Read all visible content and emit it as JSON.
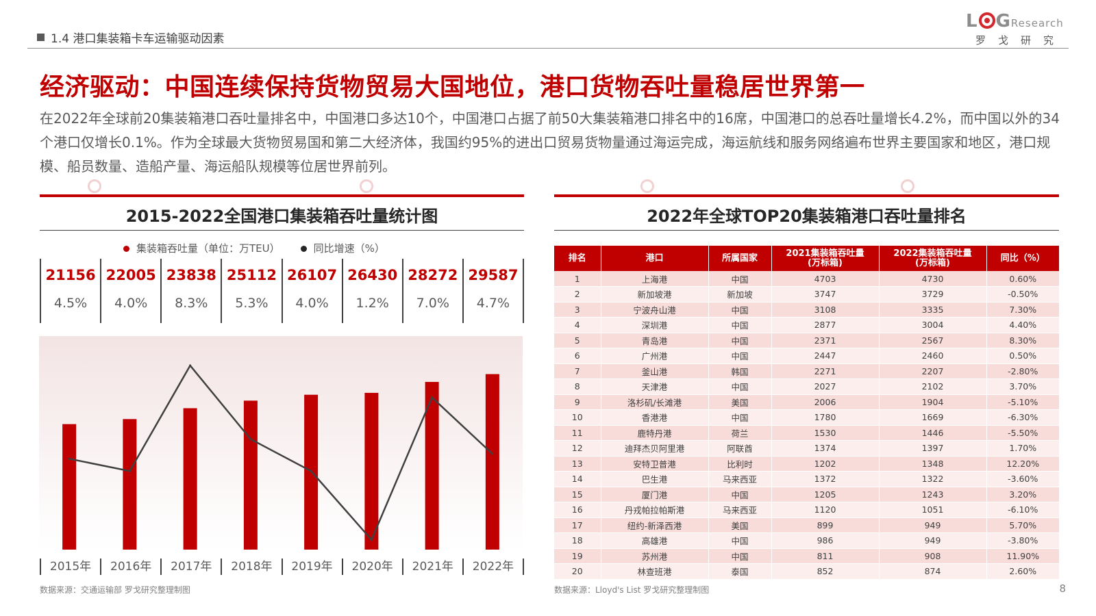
{
  "header": {
    "section": "1.4 港口集装箱卡车运输驱动因素",
    "logo_main": "L",
    "logo_g": "G",
    "logo_research": "Research",
    "logo_cn": "罗戈研究"
  },
  "title": "经济驱动：中国连续保持货物贸易大国地位，港口货物吞吐量稳居世界第一",
  "intro": "在2022年全球前20集装箱港口吞吐量排名中，中国港口多达10个，中国港口占据了前50大集装箱港口排名中的16席，中国港口的总吞吐量增长4.2%，而中国以外的34个港口仅增长0.1%。作为全球最大货物贸易国和第二大经济体，我国约95%的进出口贸易货物量通过海运完成，海运航线和服务网络遍布世界主要国家和地区，港口规模、船员数量、造船产量、海运船队规模等位居世界前列。",
  "left_panel": {
    "title": "2015-2022全国港口集装箱吞吐量统计图",
    "legend": [
      "集装箱吞吐量（单位：万TEU）",
      "同比增速（%）"
    ],
    "source": "数据来源：交通运输部  罗戈研究整理制图"
  },
  "right_panel": {
    "title": "2022年全球TOP20集装箱港口吞吐量排名",
    "source": "数据来源：Lloyd's List  罗戈研究整理制图"
  },
  "page_number": "8",
  "colors": {
    "accent": "#c00000",
    "line": "#404040"
  },
  "chart_data": [
    {
      "type": "bar",
      "categories": [
        "2015年",
        "2016年",
        "2017年",
        "2018年",
        "2019年",
        "2020年",
        "2021年",
        "2022年"
      ],
      "series": [
        {
          "name": "集装箱吞吐量（单位：万TEU）",
          "type": "bar",
          "values": [
            21156,
            22005,
            23838,
            25112,
            26107,
            26430,
            28272,
            29587
          ],
          "value_labels": [
            "21156",
            "22005",
            "23838",
            "25112",
            "26107",
            "26430",
            "28272",
            "29587"
          ]
        },
        {
          "name": "同比增速（%）",
          "type": "line",
          "values": [
            4.5,
            4.0,
            8.3,
            5.3,
            4.0,
            1.2,
            7.0,
            4.7
          ],
          "value_labels": [
            "4.5%",
            "4.0%",
            "8.3%",
            "5.3%",
            "4.0%",
            "1.2%",
            "7.0%",
            "4.7%"
          ]
        }
      ],
      "title": "2015-2022全国港口集装箱吞吐量统计图"
    },
    {
      "type": "table",
      "title": "2022年全球TOP20集装箱港口吞吐量排名",
      "columns": [
        "排名",
        "港口",
        "所属国家",
        "2021集装箱吞吐量\n(万标箱)",
        "2022集装箱吞吐量\n(万标箱)",
        "同比（%）"
      ],
      "rows": [
        [
          "1",
          "上海港",
          "中国",
          "4703",
          "4730",
          "0.60%"
        ],
        [
          "2",
          "新加坡港",
          "新加坡",
          "3747",
          "3729",
          "-0.50%"
        ],
        [
          "3",
          "宁波舟山港",
          "中国",
          "3108",
          "3335",
          "7.30%"
        ],
        [
          "4",
          "深圳港",
          "中国",
          "2877",
          "3004",
          "4.40%"
        ],
        [
          "5",
          "青岛港",
          "中国",
          "2371",
          "2567",
          "8.30%"
        ],
        [
          "6",
          "广州港",
          "中国",
          "2447",
          "2460",
          "0.50%"
        ],
        [
          "7",
          "釜山港",
          "韩国",
          "2271",
          "2207",
          "-2.80%"
        ],
        [
          "8",
          "天津港",
          "中国",
          "2027",
          "2102",
          "3.70%"
        ],
        [
          "9",
          "洛杉矶/长滩港",
          "美国",
          "2006",
          "1904",
          "-5.10%"
        ],
        [
          "10",
          "香港港",
          "中国",
          "1780",
          "1669",
          "-6.30%"
        ],
        [
          "11",
          "鹿特丹港",
          "荷兰",
          "1530",
          "1446",
          "-5.50%"
        ],
        [
          "12",
          "迪拜杰贝阿里港",
          "阿联酋",
          "1374",
          "1397",
          "1.70%"
        ],
        [
          "13",
          "安特卫普港",
          "比利时",
          "1202",
          "1348",
          "12.20%"
        ],
        [
          "14",
          "巴生港",
          "马来西亚",
          "1372",
          "1322",
          "-3.60%"
        ],
        [
          "15",
          "厦门港",
          "中国",
          "1205",
          "1243",
          "3.20%"
        ],
        [
          "16",
          "丹戎帕拉帕斯港",
          "马来西亚",
          "1120",
          "1051",
          "-6.10%"
        ],
        [
          "17",
          "纽约-新泽西港",
          "美国",
          "899",
          "949",
          "5.70%"
        ],
        [
          "18",
          "高雄港",
          "中国",
          "986",
          "949",
          "-3.80%"
        ],
        [
          "19",
          "苏州港",
          "中国",
          "811",
          "908",
          "11.90%"
        ],
        [
          "20",
          "林查班港",
          "泰国",
          "852",
          "874",
          "2.60%"
        ]
      ]
    }
  ]
}
